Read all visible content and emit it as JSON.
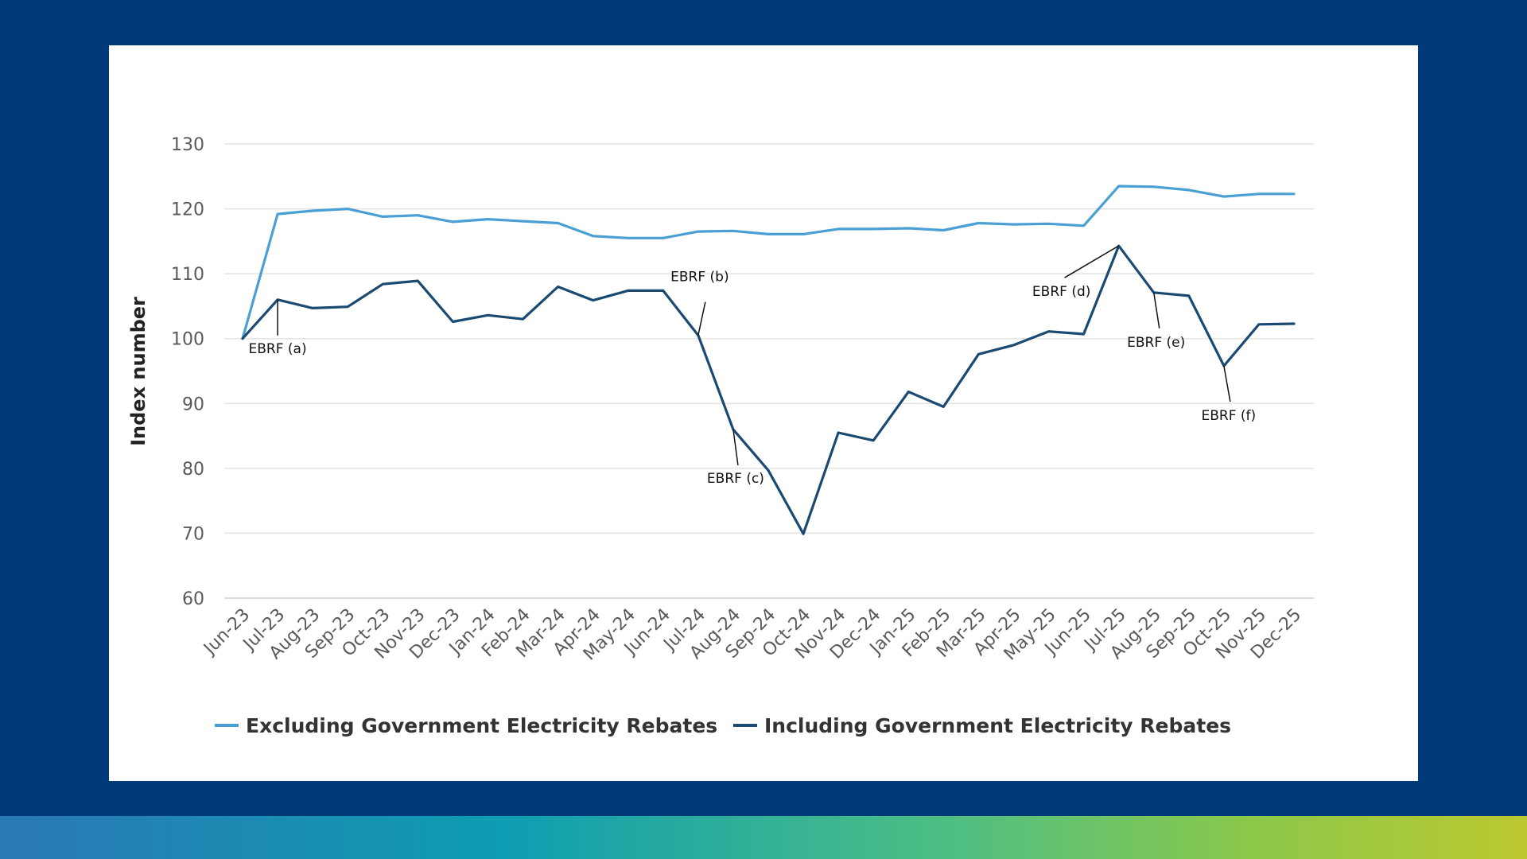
{
  "chart_data": {
    "type": "line",
    "title": "",
    "xlabel": "",
    "ylabel": "Index number",
    "ylim": [
      60,
      130
    ],
    "yticks": [
      60,
      70,
      80,
      90,
      100,
      110,
      120,
      130
    ],
    "grid": true,
    "legend_position": "bottom",
    "categories": [
      "Jun-23",
      "Jul-23",
      "Aug-23",
      "Sep-23",
      "Oct-23",
      "Nov-23",
      "Dec-23",
      "Jan-24",
      "Feb-24",
      "Mar-24",
      "Apr-24",
      "May-24",
      "Jun-24",
      "Jul-24",
      "Aug-24",
      "Sep-24",
      "Oct-24",
      "Nov-24",
      "Dec-24",
      "Jan-25",
      "Feb-25",
      "Mar-25",
      "Apr-25",
      "May-25",
      "Jun-25",
      "Jul-25",
      "Aug-25",
      "Sep-25",
      "Oct-25",
      "Nov-25",
      "Dec-25"
    ],
    "series": [
      {
        "name": "Excluding Government Electricity Rebates",
        "color": "#4a9fd4",
        "values": [
          100,
          119.2,
          119.7,
          120.0,
          118.8,
          119.0,
          118.0,
          118.4,
          118.1,
          117.8,
          115.8,
          115.5,
          115.5,
          116.5,
          116.6,
          116.1,
          116.1,
          116.9,
          116.9,
          117.0,
          116.7,
          117.8,
          117.6,
          117.7,
          117.4,
          123.5,
          123.4,
          122.9,
          121.9,
          122.3,
          122.3
        ]
      },
      {
        "name": "Including Government Electricity Rebates",
        "color": "#1a4a72",
        "values": [
          100,
          106.0,
          104.7,
          104.9,
          108.4,
          108.9,
          102.6,
          103.6,
          103.0,
          108.0,
          105.9,
          107.4,
          107.4,
          100.5,
          86.0,
          79.7,
          69.9,
          85.5,
          84.3,
          91.8,
          89.5,
          97.6,
          99.0,
          101.1,
          100.7,
          114.3,
          107.1,
          106.6,
          95.8,
          102.2,
          102.3
        ]
      }
    ],
    "annotations": [
      {
        "label": "EBRF (a)",
        "category": "Jul-23"
      },
      {
        "label": "EBRF (b)",
        "category": "Jul-24"
      },
      {
        "label": "EBRF (c)",
        "category": "Aug-24"
      },
      {
        "label": "EBRF (d)",
        "category": "Jul-25"
      },
      {
        "label": "EBRF (e)",
        "category": "Aug-25"
      },
      {
        "label": "EBRF (f)",
        "category": "Oct-25"
      }
    ]
  },
  "colors": {
    "background": "#003a78",
    "card": "#ffffff",
    "grid": "#e3e3e3",
    "annotation_line": "#111111"
  }
}
